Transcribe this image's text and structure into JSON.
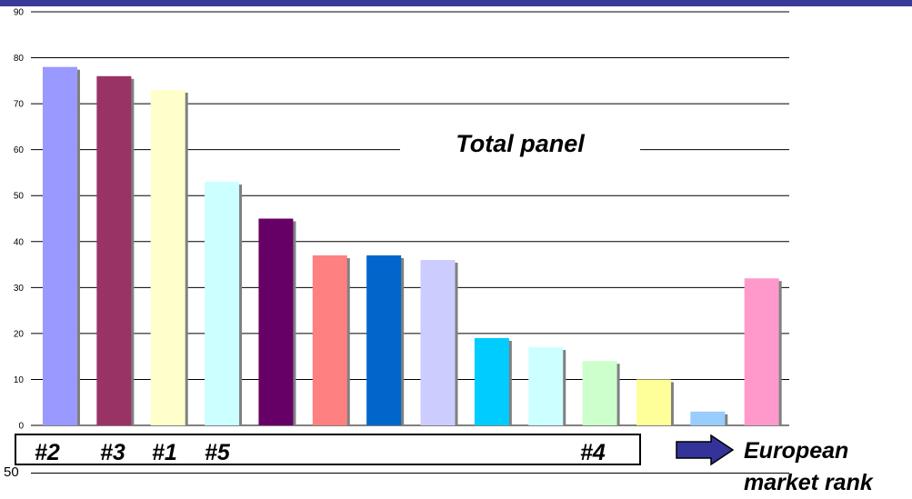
{
  "chart_data": {
    "type": "bar",
    "title": "Total panel",
    "ylim": [
      0,
      90
    ],
    "yticks": [
      "0",
      "10",
      "20",
      "30",
      "40",
      "50",
      "60",
      "70",
      "80",
      "90"
    ],
    "grid": true,
    "categories": [
      "#2",
      "#3",
      "#1",
      "#5",
      "",
      "",
      "",
      "",
      "",
      "",
      "#4",
      "",
      "",
      ""
    ],
    "values": [
      78,
      76,
      73,
      53,
      45,
      37,
      37,
      36,
      19,
      17,
      14,
      10,
      3,
      32
    ],
    "colors": [
      "#9999ff",
      "#993366",
      "#ffffcc",
      "#ccffff",
      "#660066",
      "#ff8080",
      "#0066cc",
      "#ccccff",
      "#00ccff",
      "#ccffff",
      "#ccffcc",
      "#ffff99",
      "#99ccff",
      "#ff99cc"
    ],
    "rank_labels": [
      "#2",
      "#3",
      "#1",
      "#5",
      "#4"
    ],
    "rank_caption": "European market rank",
    "baseline_value": "50"
  }
}
